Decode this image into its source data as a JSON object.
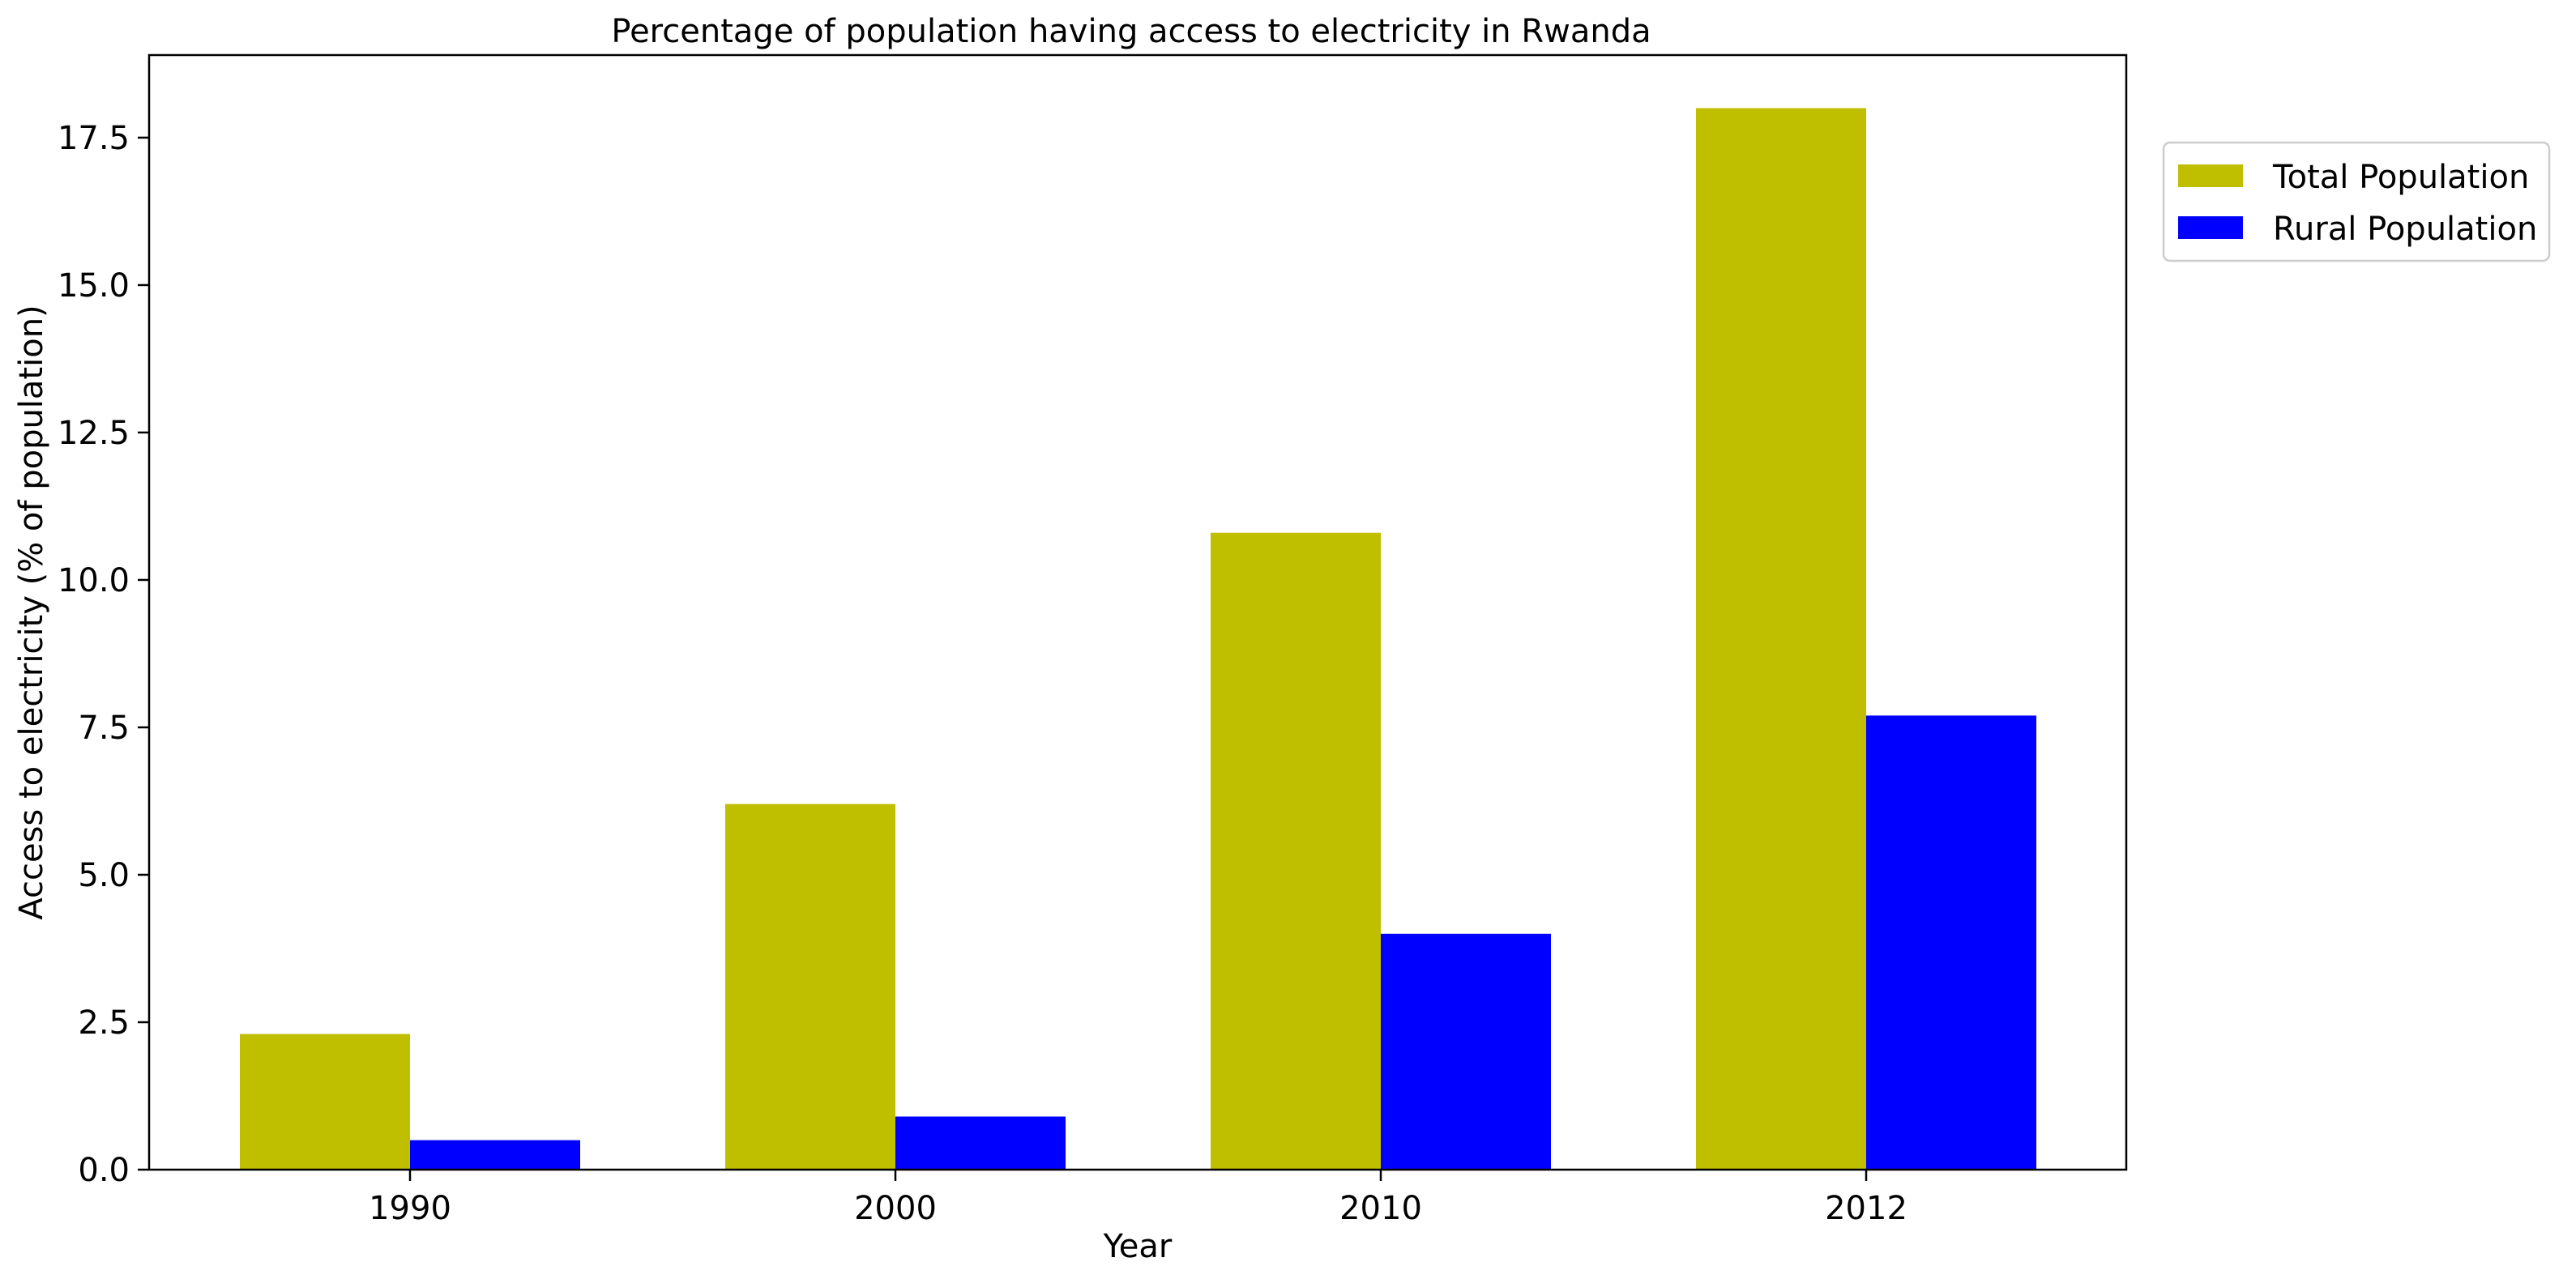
{
  "chart_data": {
    "type": "bar",
    "title": "Percentage of population having access to electricity in Rwanda",
    "xlabel": "Year",
    "ylabel": "Access to electricity (% of population)",
    "categories": [
      "1990",
      "2000",
      "2010",
      "2012"
    ],
    "series": [
      {
        "name": "Total Population",
        "color": "#bfbf00",
        "values": [
          2.3,
          6.2,
          10.8,
          18.0
        ]
      },
      {
        "name": "Rural Population",
        "color": "#0000ff",
        "values": [
          0.5,
          0.9,
          4.0,
          7.7
        ]
      }
    ],
    "ylim": [
      0,
      18.9
    ],
    "yticks": [
      0.0,
      2.5,
      5.0,
      7.5,
      10.0,
      12.5,
      15.0,
      17.5
    ],
    "ytick_labels": [
      "0.0",
      "2.5",
      "5.0",
      "7.5",
      "10.0",
      "12.5",
      "15.0",
      "17.5"
    ],
    "grid": false,
    "legend_position": "outside-top-right"
  }
}
